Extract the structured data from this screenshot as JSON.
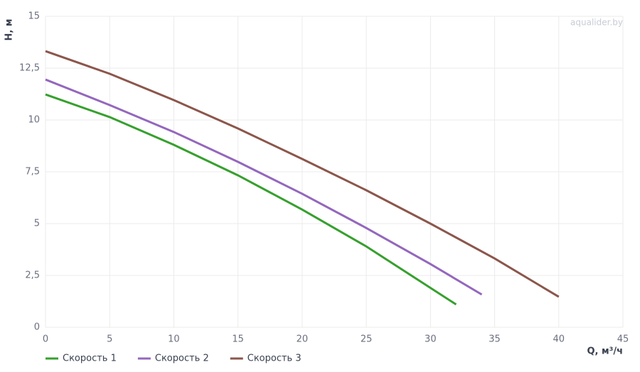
{
  "chart_data": {
    "type": "line",
    "watermark": "aqualider.by",
    "y_label": "H, м",
    "x_label": "Q, м³/ч",
    "xlim": [
      0,
      45
    ],
    "xticks": [
      0,
      5,
      10,
      15,
      20,
      25,
      30,
      35,
      40,
      45
    ],
    "ylim": [
      0,
      15
    ],
    "yticks": [
      0,
      {
        "value": 2.5,
        "label": "2,5"
      },
      5,
      {
        "value": 7.5,
        "label": "7,5"
      },
      10,
      {
        "value": 12.5,
        "label": "12,5"
      },
      15
    ],
    "grid": true,
    "legend": "bottom-left",
    "series": [
      {
        "name": "Скорость 1",
        "color": "#36a02e",
        "x": [
          0,
          5,
          10,
          15,
          20,
          25,
          32
        ],
        "values": [
          11.23,
          10.14,
          8.8,
          7.33,
          5.68,
          3.9,
          1.1
        ]
      },
      {
        "name": "Скорость 2",
        "color": "#9467bd",
        "x": [
          0,
          5,
          10,
          15,
          20,
          25,
          30,
          34
        ],
        "values": [
          11.95,
          10.72,
          9.42,
          7.98,
          6.44,
          4.79,
          3.05,
          1.58
        ]
      },
      {
        "name": "Скорость 3",
        "color": "#8c564b",
        "x": [
          0,
          5,
          10,
          15,
          20,
          25,
          30,
          35,
          40
        ],
        "values": [
          13.32,
          12.23,
          10.96,
          9.59,
          8.12,
          6.61,
          5.0,
          3.32,
          1.47
        ]
      }
    ]
  }
}
